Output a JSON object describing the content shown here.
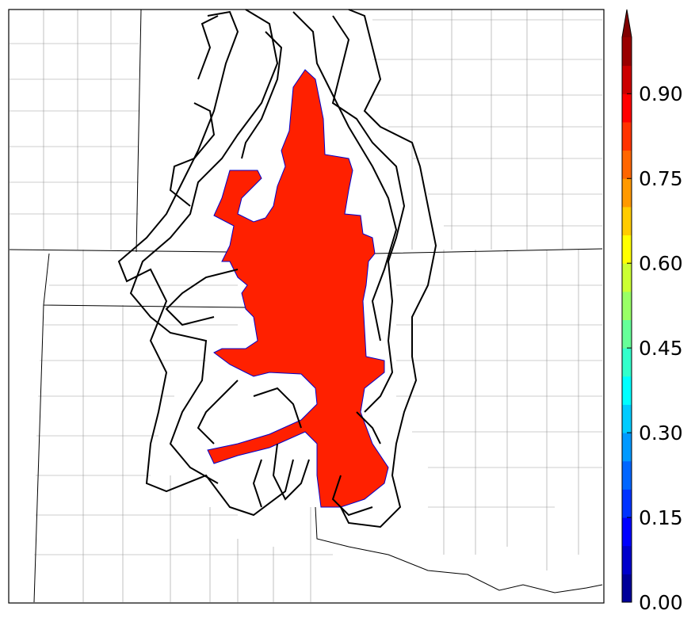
{
  "colorbar": {
    "min": 0.0,
    "max": 1.0,
    "levels": 20,
    "extend": "max",
    "colormap": "jet",
    "ticks": [
      {
        "value": 0.0,
        "label": "0.00"
      },
      {
        "value": 0.15,
        "label": "0.15"
      },
      {
        "value": 0.3,
        "label": "0.30"
      },
      {
        "value": 0.45,
        "label": "0.45"
      },
      {
        "value": 0.6,
        "label": "0.60"
      },
      {
        "value": 0.75,
        "label": "0.75"
      },
      {
        "value": 0.9,
        "label": "0.90"
      }
    ]
  },
  "colors": {
    "probability_fill": "#ff2000",
    "contours": "#000000",
    "counties": "#888888"
  }
}
